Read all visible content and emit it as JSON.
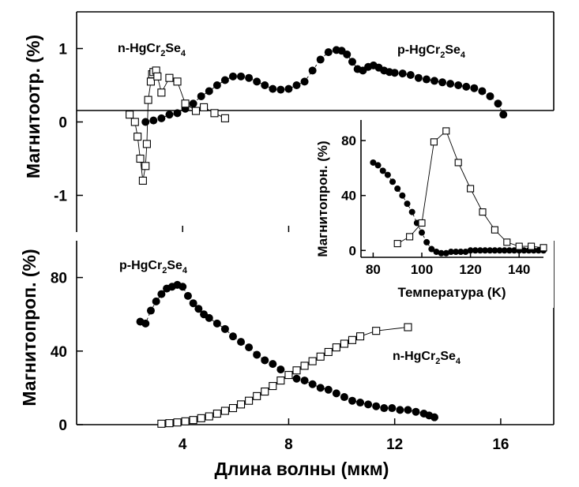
{
  "chart_data": [
    {
      "id": "top",
      "type": "scatter",
      "title": "",
      "xlabel": "Длина волны (мкм)",
      "ylabel": "Магнитоотр. (%)",
      "xlim": [
        0,
        18
      ],
      "ylim": [
        -1.5,
        1.5
      ],
      "x_ticks": [
        4,
        8,
        12,
        16
      ],
      "y_ticks": [
        {
          "value": 1,
          "label": "1"
        },
        {
          "value": 0,
          "label": "0"
        },
        {
          "value": -1,
          "label": "-1"
        }
      ],
      "zero_line": true,
      "series": [
        {
          "name": "p-HgCr2Se4",
          "label_parts": [
            "p-HgCr",
            "2",
            "Se",
            "4"
          ],
          "marker": "filled-circle",
          "x": [
            2.6,
            2.9,
            3.2,
            3.5,
            3.8,
            4.1,
            4.4,
            4.7,
            5.0,
            5.3,
            5.6,
            5.9,
            6.2,
            6.5,
            6.8,
            7.1,
            7.4,
            7.7,
            8.0,
            8.3,
            8.6,
            8.9,
            9.2,
            9.5,
            9.8,
            10.0,
            10.2,
            10.4,
            10.6,
            10.8,
            11.0,
            11.2,
            11.4,
            11.6,
            11.8,
            12.0,
            12.3,
            12.6,
            12.9,
            13.2,
            13.5,
            13.8,
            14.1,
            14.4,
            14.7,
            15.0,
            15.3,
            15.6,
            15.9,
            16.1
          ],
          "y": [
            0.0,
            0.02,
            0.05,
            0.1,
            0.12,
            0.18,
            0.25,
            0.35,
            0.42,
            0.5,
            0.57,
            0.62,
            0.62,
            0.6,
            0.55,
            0.5,
            0.45,
            0.44,
            0.45,
            0.5,
            0.55,
            0.7,
            0.85,
            0.95,
            0.98,
            0.97,
            0.92,
            0.82,
            0.72,
            0.7,
            0.75,
            0.77,
            0.74,
            0.7,
            0.68,
            0.67,
            0.66,
            0.64,
            0.6,
            0.58,
            0.56,
            0.54,
            0.52,
            0.5,
            0.48,
            0.46,
            0.42,
            0.35,
            0.25,
            0.1
          ]
        },
        {
          "name": "n-HgCr2Se4",
          "label_parts": [
            "n-HgCr",
            "2",
            "Se",
            "4"
          ],
          "marker": "open-square",
          "x": [
            2.0,
            2.2,
            2.3,
            2.4,
            2.5,
            2.6,
            2.65,
            2.7,
            2.8,
            2.85,
            2.9,
            3.0,
            3.05,
            3.2,
            3.5,
            3.8,
            4.1,
            4.5,
            4.8,
            5.2,
            5.6
          ],
          "y": [
            0.1,
            0.0,
            -0.2,
            -0.5,
            -0.8,
            -0.6,
            -0.3,
            0.3,
            0.55,
            0.65,
            0.68,
            0.7,
            0.62,
            0.4,
            0.6,
            0.55,
            0.25,
            0.15,
            0.2,
            0.12,
            0.05
          ]
        }
      ]
    },
    {
      "id": "bottom",
      "type": "scatter",
      "title": "",
      "xlabel": "Длина волны (мкм)",
      "ylabel": "Магнитопроп. (%)",
      "xlim": [
        0,
        18
      ],
      "ylim": [
        0,
        100
      ],
      "x_ticks": [
        {
          "value": 4,
          "label": "4"
        },
        {
          "value": 8,
          "label": "8"
        },
        {
          "value": 12,
          "label": "12"
        },
        {
          "value": 16,
          "label": "16"
        }
      ],
      "y_ticks": [
        {
          "value": 0,
          "label": "0"
        },
        {
          "value": 40,
          "label": "40"
        },
        {
          "value": 80,
          "label": "80"
        }
      ],
      "series": [
        {
          "name": "p-HgCr2Se4",
          "label_parts": [
            "p-HgCr",
            "2",
            "Se",
            "4"
          ],
          "marker": "filled-circle",
          "x": [
            2.4,
            2.6,
            2.8,
            3.0,
            3.2,
            3.4,
            3.6,
            3.8,
            4.0,
            4.2,
            4.4,
            4.6,
            4.8,
            5.0,
            5.3,
            5.6,
            5.9,
            6.2,
            6.5,
            6.8,
            7.1,
            7.4,
            7.7,
            8.0,
            8.3,
            8.6,
            8.9,
            9.2,
            9.5,
            9.8,
            10.1,
            10.4,
            10.7,
            11.0,
            11.3,
            11.6,
            11.9,
            12.2,
            12.5,
            12.8,
            13.1,
            13.3,
            13.5
          ],
          "y": [
            56,
            55,
            62,
            67,
            71,
            74,
            75,
            76,
            75,
            70,
            66,
            63,
            60,
            58,
            55,
            52,
            48,
            45,
            42,
            38,
            35,
            33,
            30,
            27,
            25,
            24,
            22,
            20,
            19,
            17,
            15,
            13,
            12,
            11,
            10,
            9,
            9,
            8,
            8,
            7,
            6,
            5,
            4
          ]
        },
        {
          "name": "n-HgCr2Se4",
          "label_parts": [
            "n-HgCr",
            "2",
            "Se",
            "4"
          ],
          "marker": "open-square",
          "x": [
            3.2,
            3.5,
            3.8,
            4.1,
            4.4,
            4.7,
            5.0,
            5.3,
            5.6,
            5.9,
            6.2,
            6.5,
            6.8,
            7.1,
            7.4,
            7.7,
            8.0,
            8.3,
            8.6,
            8.9,
            9.2,
            9.5,
            9.8,
            10.1,
            10.4,
            10.7,
            11.3,
            12.5
          ],
          "y": [
            0.5,
            0.8,
            1.2,
            1.8,
            2.5,
            3.5,
            4.5,
            6,
            7.5,
            9,
            11,
            13,
            15.5,
            18,
            21,
            24,
            27,
            29.5,
            32,
            34.5,
            37,
            39.5,
            42,
            44,
            46,
            48,
            51,
            53
          ]
        }
      ]
    },
    {
      "id": "inset",
      "type": "line",
      "title": "",
      "xlabel": "Температура (K)",
      "ylabel": "Магнитопрон. (%)",
      "xlim": [
        75,
        150
      ],
      "ylim": [
        -5,
        95
      ],
      "x_ticks": [
        {
          "value": 80,
          "label": "80"
        },
        {
          "value": 100,
          "label": "100"
        },
        {
          "value": 120,
          "label": "120"
        },
        {
          "value": 140,
          "label": "140"
        }
      ],
      "y_ticks": [
        {
          "value": 0,
          "label": "0"
        },
        {
          "value": 40,
          "label": "40"
        },
        {
          "value": 80,
          "label": "80"
        }
      ],
      "series": [
        {
          "marker": "filled-circle",
          "dashed": true,
          "x": [
            80,
            82,
            84,
            86,
            88,
            90,
            92,
            94,
            96,
            98,
            100,
            102,
            104,
            106,
            108,
            110,
            112,
            114,
            116,
            118,
            120,
            122,
            124,
            126,
            128,
            130,
            132,
            134,
            136,
            138,
            140,
            142,
            144,
            146,
            148,
            150
          ],
          "y": [
            64,
            62,
            58,
            55,
            50,
            45,
            40,
            34,
            28,
            20,
            13,
            6,
            1,
            -1,
            -2,
            -2,
            -1,
            -1,
            -1,
            -1,
            0,
            0,
            0,
            0,
            0,
            0,
            0,
            0,
            0,
            0,
            0,
            0,
            0,
            0,
            0,
            0
          ]
        },
        {
          "marker": "open-square",
          "dashed": false,
          "x": [
            90,
            95,
            100,
            105,
            110,
            115,
            120,
            125,
            130,
            135,
            140,
            145,
            150
          ],
          "y": [
            5,
            10,
            20,
            79,
            87,
            64,
            45,
            28,
            15,
            6,
            3,
            3,
            2
          ]
        }
      ]
    }
  ]
}
